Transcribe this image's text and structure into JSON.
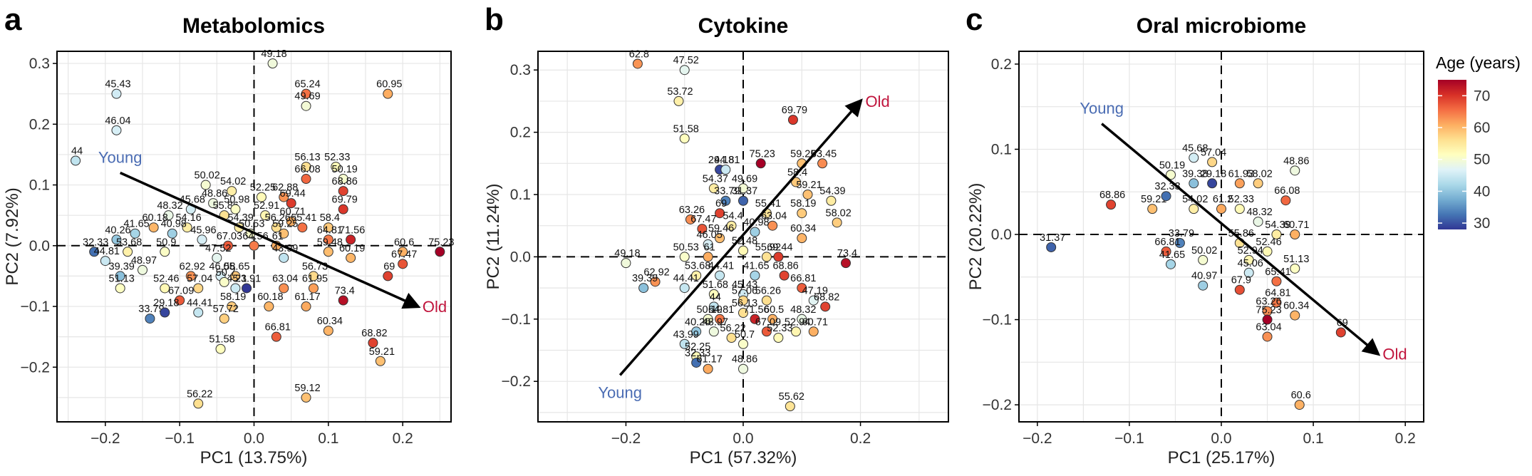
{
  "colors": {
    "young": "#4a6cb3",
    "old": "#c0143c",
    "grid": "#e6e6e6",
    "frame": "#000000",
    "scale": [
      "#313695",
      "#4575b4",
      "#74add1",
      "#abd9e9",
      "#e0f3f8",
      "#ffffbf",
      "#fee090",
      "#fdae61",
      "#f46d43",
      "#d73027",
      "#a50026"
    ]
  },
  "legend": {
    "title": "Age (years)",
    "ticks": [
      30,
      40,
      50,
      60,
      70
    ],
    "range": [
      28,
      75
    ]
  },
  "chart_data": [
    {
      "type": "scatter",
      "panel": "a",
      "title": "Metabolomics",
      "xlabel": "PC1 (13.75%)",
      "ylabel": "PC2 (7.92%)",
      "xlim": [
        -0.265,
        0.265
      ],
      "ylim": [
        -0.29,
        0.32
      ],
      "xticks": [
        -0.2,
        -0.1,
        0.0,
        0.1,
        0.2
      ],
      "xtick_labels": [
        "−0.2",
        "−0.1",
        "0.0",
        "0.1",
        "0.2"
      ],
      "yticks": [
        -0.2,
        -0.1,
        0.0,
        0.1,
        0.2,
        0.3
      ],
      "ytick_labels": [
        "−0.2",
        "−0.1",
        "0.0",
        "0.1",
        "0.2",
        "0.3"
      ],
      "grid": true,
      "arrow": {
        "from": [
          -0.18,
          0.12
        ],
        "to": [
          0.22,
          -0.1
        ],
        "young_label": "Young",
        "old_label": "Old"
      },
      "points": [
        {
          "x": 0.025,
          "y": 0.3,
          "age": 49.18
        },
        {
          "x": 0.07,
          "y": 0.25,
          "age": 65.24
        },
        {
          "x": 0.07,
          "y": 0.23,
          "age": 49.69
        },
        {
          "x": 0.18,
          "y": 0.25,
          "age": 60.95
        },
        {
          "x": -0.185,
          "y": 0.25,
          "age": 45.43
        },
        {
          "x": -0.185,
          "y": 0.19,
          "age": 46.04
        },
        {
          "x": -0.24,
          "y": 0.14,
          "age": 44
        },
        {
          "x": -0.065,
          "y": 0.1,
          "age": 50.02
        },
        {
          "x": -0.03,
          "y": 0.09,
          "age": 54.02
        },
        {
          "x": 0.01,
          "y": 0.08,
          "age": 52.25
        },
        {
          "x": 0.07,
          "y": 0.13,
          "age": 56.13
        },
        {
          "x": 0.11,
          "y": 0.13,
          "age": 52.33
        },
        {
          "x": 0.07,
          "y": 0.11,
          "age": 66.08
        },
        {
          "x": 0.12,
          "y": 0.11,
          "age": 50.19
        },
        {
          "x": 0.04,
          "y": 0.08,
          "age": 62.88
        },
        {
          "x": 0.05,
          "y": 0.07,
          "age": 69.44
        },
        {
          "x": 0.12,
          "y": 0.09,
          "age": 68.86
        },
        {
          "x": -0.055,
          "y": 0.07,
          "age": 48.86
        },
        {
          "x": -0.085,
          "y": 0.06,
          "age": 45.68
        },
        {
          "x": -0.115,
          "y": 0.05,
          "age": 48.32
        },
        {
          "x": -0.04,
          "y": 0.05,
          "age": 55.86
        },
        {
          "x": -0.025,
          "y": 0.06,
          "age": 50.98
        },
        {
          "x": 0.015,
          "y": 0.05,
          "age": 52.91
        },
        {
          "x": 0.05,
          "y": 0.04,
          "age": 60.71
        },
        {
          "x": 0.12,
          "y": 0.06,
          "age": 69.79
        },
        {
          "x": -0.135,
          "y": 0.03,
          "age": 60.18
        },
        {
          "x": -0.09,
          "y": 0.03,
          "age": 54.16
        },
        {
          "x": -0.16,
          "y": 0.02,
          "age": 41.65
        },
        {
          "x": -0.11,
          "y": 0.02,
          "age": 40.98
        },
        {
          "x": -0.185,
          "y": 0.01,
          "age": 40.26
        },
        {
          "x": -0.02,
          "y": 0.03,
          "age": 54.39
        },
        {
          "x": -0.005,
          "y": 0.02,
          "age": 50.53
        },
        {
          "x": 0.03,
          "y": 0.03,
          "age": 56.26
        },
        {
          "x": 0.065,
          "y": 0.03,
          "age": 65.41
        },
        {
          "x": 0.1,
          "y": 0.03,
          "age": 58.4
        },
        {
          "x": 0.04,
          "y": 0.02,
          "age": 59.25
        },
        {
          "x": 0.1,
          "y": 0.01,
          "age": 64.81
        },
        {
          "x": 0.13,
          "y": 0.01,
          "age": 71.56
        },
        {
          "x": 0.25,
          "y": -0.01,
          "age": 75.23
        },
        {
          "x": 0.2,
          "y": -0.01,
          "age": 60.6
        },
        {
          "x": -0.215,
          "y": -0.01,
          "age": 32.33
        },
        {
          "x": -0.17,
          "y": -0.01,
          "age": 53.68
        },
        {
          "x": -0.12,
          "y": -0.01,
          "age": 50.9
        },
        {
          "x": -0.07,
          "y": 0.01,
          "age": 45.96
        },
        {
          "x": -0.035,
          "y": 0.0,
          "age": 67.03
        },
        {
          "x": 0.0,
          "y": 0.0,
          "age": 64.56
        },
        {
          "x": 0.03,
          "y": 0.0,
          "age": 61
        },
        {
          "x": -0.05,
          "y": -0.02,
          "age": 47.52
        },
        {
          "x": -0.2,
          "y": -0.025,
          "age": 44.81
        },
        {
          "x": 0.04,
          "y": -0.02,
          "age": 43.99
        },
        {
          "x": 0.1,
          "y": -0.01,
          "age": 59.48
        },
        {
          "x": 0.13,
          "y": -0.02,
          "age": 60.19
        },
        {
          "x": 0.2,
          "y": -0.03,
          "age": 67.47
        },
        {
          "x": -0.15,
          "y": -0.04,
          "age": 48.97
        },
        {
          "x": -0.18,
          "y": -0.05,
          "age": 39.39
        },
        {
          "x": -0.085,
          "y": -0.05,
          "age": 62.92
        },
        {
          "x": -0.045,
          "y": -0.05,
          "age": 46.05
        },
        {
          "x": -0.025,
          "y": -0.05,
          "age": 58.65
        },
        {
          "x": 0.08,
          "y": -0.05,
          "age": 56.73
        },
        {
          "x": 0.18,
          "y": -0.05,
          "age": 69
        },
        {
          "x": -0.12,
          "y": -0.07,
          "age": 52.46
        },
        {
          "x": -0.18,
          "y": -0.07,
          "age": 51.13
        },
        {
          "x": -0.075,
          "y": -0.07,
          "age": 57.04
        },
        {
          "x": -0.025,
          "y": -0.07,
          "age": 45.1
        },
        {
          "x": -0.01,
          "y": -0.07,
          "age": 23.91
        },
        {
          "x": -0.04,
          "y": -0.06,
          "age": 50.7
        },
        {
          "x": 0.04,
          "y": -0.07,
          "age": 63.04
        },
        {
          "x": 0.08,
          "y": -0.07,
          "age": 61.95
        },
        {
          "x": -0.1,
          "y": -0.09,
          "age": 67.09
        },
        {
          "x": -0.03,
          "y": -0.1,
          "age": 58.19
        },
        {
          "x": 0.02,
          "y": -0.1,
          "age": 60.18
        },
        {
          "x": 0.07,
          "y": -0.1,
          "age": 61.17
        },
        {
          "x": 0.12,
          "y": -0.09,
          "age": 73.4
        },
        {
          "x": -0.14,
          "y": -0.12,
          "age": 33.79
        },
        {
          "x": -0.12,
          "y": -0.11,
          "age": 29.18
        },
        {
          "x": -0.075,
          "y": -0.11,
          "age": 44.41
        },
        {
          "x": -0.04,
          "y": -0.12,
          "age": 57.72
        },
        {
          "x": 0.1,
          "y": -0.14,
          "age": 60.34
        },
        {
          "x": 0.03,
          "y": -0.15,
          "age": 66.81
        },
        {
          "x": 0.16,
          "y": -0.16,
          "age": 68.82
        },
        {
          "x": 0.17,
          "y": -0.19,
          "age": 59.21
        },
        {
          "x": -0.045,
          "y": -0.17,
          "age": 51.58
        },
        {
          "x": 0.07,
          "y": -0.25,
          "age": 59.12
        },
        {
          "x": -0.075,
          "y": -0.26,
          "age": 56.22
        }
      ]
    },
    {
      "type": "scatter",
      "panel": "b",
      "title": "Cytokine",
      "xlabel": "PC1 (57.32%)",
      "ylabel": "PC2 (11.24%)",
      "xlim": [
        -0.35,
        0.35
      ],
      "ylim": [
        -0.265,
        0.33
      ],
      "xticks": [
        -0.2,
        0.0,
        0.2
      ],
      "xtick_labels": [
        "−0.2",
        "0.0",
        "0.2"
      ],
      "yticks": [
        -0.2,
        -0.1,
        0.0,
        0.1,
        0.2,
        0.3
      ],
      "ytick_labels": [
        "−0.2",
        "−0.1",
        "0.0",
        "0.1",
        "0.2",
        "0.3"
      ],
      "grid": true,
      "arrow": {
        "from": [
          -0.21,
          -0.19
        ],
        "to": [
          0.2,
          0.25
        ],
        "young_label": "Young",
        "old_label": "Old"
      },
      "points": [
        {
          "x": -0.18,
          "y": 0.31,
          "age": 62.8
        },
        {
          "x": -0.1,
          "y": 0.3,
          "age": 47.52
        },
        {
          "x": -0.11,
          "y": 0.25,
          "age": 53.72
        },
        {
          "x": -0.1,
          "y": 0.19,
          "age": 51.58
        },
        {
          "x": 0.085,
          "y": 0.22,
          "age": 69.79
        },
        {
          "x": -0.04,
          "y": 0.14,
          "age": 29.18
        },
        {
          "x": 0.03,
          "y": 0.15,
          "age": 75.23
        },
        {
          "x": 0.1,
          "y": 0.15,
          "age": 59.25
        },
        {
          "x": -0.03,
          "y": 0.14,
          "age": 44.81
        },
        {
          "x": 0.135,
          "y": 0.15,
          "age": 63.45
        },
        {
          "x": 0.09,
          "y": 0.12,
          "age": 58.4
        },
        {
          "x": -0.05,
          "y": 0.11,
          "age": 54.37
        },
        {
          "x": 0.0,
          "y": 0.11,
          "age": 49.69
        },
        {
          "x": 0.11,
          "y": 0.1,
          "age": 59.21
        },
        {
          "x": 0.15,
          "y": 0.09,
          "age": 54.39
        },
        {
          "x": -0.03,
          "y": 0.09,
          "age": 33.79
        },
        {
          "x": 0.0,
          "y": 0.09,
          "age": 31.37
        },
        {
          "x": -0.04,
          "y": 0.07,
          "age": 69
        },
        {
          "x": 0.04,
          "y": 0.07,
          "age": 55.41
        },
        {
          "x": 0.1,
          "y": 0.07,
          "age": 58.19
        },
        {
          "x": 0.16,
          "y": 0.055,
          "age": 58.02
        },
        {
          "x": 0.05,
          "y": 0.05,
          "age": 63.04
        },
        {
          "x": -0.09,
          "y": 0.06,
          "age": 63.26
        },
        {
          "x": -0.07,
          "y": 0.045,
          "age": 67.47
        },
        {
          "x": -0.02,
          "y": 0.05,
          "age": 54.4
        },
        {
          "x": 0.02,
          "y": 0.04,
          "age": 40.98
        },
        {
          "x": 0.1,
          "y": 0.03,
          "age": 60.34
        },
        {
          "x": -0.04,
          "y": 0.03,
          "age": 59.46
        },
        {
          "x": -0.06,
          "y": 0.02,
          "age": 46.05
        },
        {
          "x": -0.1,
          "y": 0.0,
          "age": 50.53
        },
        {
          "x": -0.06,
          "y": 0.0,
          "age": 61
        },
        {
          "x": 0.0,
          "y": 0.01,
          "age": 52.48
        },
        {
          "x": 0.06,
          "y": 0.0,
          "age": 69.44
        },
        {
          "x": 0.04,
          "y": 0.0,
          "age": 55.92
        },
        {
          "x": 0.175,
          "y": -0.01,
          "age": 73.4
        },
        {
          "x": -0.2,
          "y": -0.01,
          "age": 49.18
        },
        {
          "x": -0.08,
          "y": -0.03,
          "age": 53.68
        },
        {
          "x": -0.04,
          "y": -0.03,
          "age": 44.41
        },
        {
          "x": 0.02,
          "y": -0.03,
          "age": 41.65
        },
        {
          "x": 0.07,
          "y": -0.03,
          "age": 68.86
        },
        {
          "x": -0.15,
          "y": -0.04,
          "age": 62.92
        },
        {
          "x": -0.17,
          "y": -0.05,
          "age": 39.39
        },
        {
          "x": -0.1,
          "y": -0.05,
          "age": 44.41
        },
        {
          "x": 0.0,
          "y": -0.06,
          "age": 45.43
        },
        {
          "x": 0.1,
          "y": -0.05,
          "age": 66.81
        },
        {
          "x": -0.05,
          "y": -0.06,
          "age": 51.68
        },
        {
          "x": 0.0,
          "y": -0.07,
          "age": 57.06
        },
        {
          "x": 0.04,
          "y": -0.07,
          "age": 56.26
        },
        {
          "x": 0.12,
          "y": -0.07,
          "age": 47.19
        },
        {
          "x": -0.05,
          "y": -0.08,
          "age": 44
        },
        {
          "x": 0.0,
          "y": -0.09,
          "age": 56.13
        },
        {
          "x": 0.14,
          "y": -0.08,
          "age": 68.82
        },
        {
          "x": -0.04,
          "y": -0.1,
          "age": 64.81
        },
        {
          "x": 0.02,
          "y": -0.1,
          "age": 71.56
        },
        {
          "x": 0.05,
          "y": -0.1,
          "age": 60.5
        },
        {
          "x": 0.1,
          "y": -0.1,
          "age": 48.32
        },
        {
          "x": -0.06,
          "y": -0.1,
          "age": 50.19
        },
        {
          "x": -0.08,
          "y": -0.12,
          "age": 40.26
        },
        {
          "x": -0.05,
          "y": -0.12,
          "age": 48.97
        },
        {
          "x": -0.02,
          "y": -0.13,
          "age": 56.22
        },
        {
          "x": 0.04,
          "y": -0.12,
          "age": 67.09
        },
        {
          "x": 0.09,
          "y": -0.12,
          "age": 52.94
        },
        {
          "x": 0.12,
          "y": -0.12,
          "age": 60.71
        },
        {
          "x": -0.1,
          "y": -0.14,
          "age": 43.99
        },
        {
          "x": 0.0,
          "y": -0.14,
          "age": 50.7
        },
        {
          "x": 0.06,
          "y": -0.13,
          "age": 52.33
        },
        {
          "x": -0.08,
          "y": -0.16,
          "age": 52.25
        },
        {
          "x": -0.08,
          "y": -0.17,
          "age": 32.33
        },
        {
          "x": -0.06,
          "y": -0.18,
          "age": 61.17
        },
        {
          "x": 0.0,
          "y": -0.18,
          "age": 48.86
        },
        {
          "x": 0.08,
          "y": -0.24,
          "age": 55.62
        }
      ]
    },
    {
      "type": "scatter",
      "panel": "c",
      "title": "Oral microbiome",
      "xlabel": "PC1 (25.17%)",
      "ylabel": "PC2 (20.22%)",
      "xlim": [
        -0.22,
        0.22
      ],
      "ylim": [
        -0.22,
        0.215
      ],
      "xticks": [
        -0.2,
        -0.1,
        0.0,
        0.1,
        0.2
      ],
      "xtick_labels": [
        "−0.2",
        "−0.1",
        "0.0",
        "0.1",
        "0.2"
      ],
      "yticks": [
        -0.2,
        -0.1,
        0.0,
        0.1,
        0.2
      ],
      "ytick_labels": [
        "−0.2",
        "−0.1",
        "0.0",
        "0.1",
        "0.2"
      ],
      "grid": true,
      "arrow": {
        "from": [
          -0.13,
          0.13
        ],
        "to": [
          0.17,
          -0.14
        ],
        "young_label": "Young",
        "old_label": "Old"
      },
      "points": [
        {
          "x": -0.185,
          "y": -0.015,
          "age": 31.37
        },
        {
          "x": -0.12,
          "y": 0.035,
          "age": 68.86
        },
        {
          "x": -0.075,
          "y": 0.03,
          "age": 59.21
        },
        {
          "x": -0.03,
          "y": 0.09,
          "age": 45.68
        },
        {
          "x": -0.01,
          "y": 0.085,
          "age": 57.04
        },
        {
          "x": -0.055,
          "y": 0.07,
          "age": 50.19
        },
        {
          "x": -0.06,
          "y": 0.045,
          "age": 32.33
        },
        {
          "x": -0.03,
          "y": 0.06,
          "age": 39.38
        },
        {
          "x": -0.01,
          "y": 0.06,
          "age": 29.18
        },
        {
          "x": 0.02,
          "y": 0.06,
          "age": 61.93
        },
        {
          "x": 0.04,
          "y": 0.06,
          "age": 58.02
        },
        {
          "x": 0.08,
          "y": 0.075,
          "age": 48.86
        },
        {
          "x": -0.03,
          "y": 0.03,
          "age": 54.02
        },
        {
          "x": 0.0,
          "y": 0.03,
          "age": 61.2
        },
        {
          "x": 0.07,
          "y": 0.04,
          "age": 66.08
        },
        {
          "x": 0.02,
          "y": 0.03,
          "age": 52.33
        },
        {
          "x": 0.04,
          "y": 0.015,
          "age": 48.32
        },
        {
          "x": 0.06,
          "y": 0.0,
          "age": 54.39
        },
        {
          "x": 0.08,
          "y": 0.0,
          "age": 60.71
        },
        {
          "x": -0.045,
          "y": -0.01,
          "age": 33.79
        },
        {
          "x": 0.02,
          "y": -0.01,
          "age": 55.86
        },
        {
          "x": 0.05,
          "y": -0.02,
          "age": 52.46
        },
        {
          "x": -0.06,
          "y": -0.02,
          "age": 66.81
        },
        {
          "x": -0.02,
          "y": -0.03,
          "age": 50.02
        },
        {
          "x": 0.03,
          "y": -0.03,
          "age": 52.94
        },
        {
          "x": 0.08,
          "y": -0.04,
          "age": 51.13
        },
        {
          "x": -0.055,
          "y": -0.035,
          "age": 41.65
        },
        {
          "x": 0.03,
          "y": -0.045,
          "age": 45.06
        },
        {
          "x": 0.06,
          "y": -0.055,
          "age": 65.41
        },
        {
          "x": -0.02,
          "y": -0.06,
          "age": 40.97
        },
        {
          "x": 0.02,
          "y": -0.065,
          "age": 67.9
        },
        {
          "x": 0.06,
          "y": -0.08,
          "age": 64.81
        },
        {
          "x": 0.05,
          "y": -0.09,
          "age": 63.26
        },
        {
          "x": 0.08,
          "y": -0.095,
          "age": 60.34
        },
        {
          "x": 0.05,
          "y": -0.1,
          "age": 75.23
        },
        {
          "x": 0.13,
          "y": -0.115,
          "age": 69
        },
        {
          "x": 0.05,
          "y": -0.12,
          "age": 63.04
        },
        {
          "x": 0.085,
          "y": -0.2,
          "age": 60.6
        }
      ]
    }
  ]
}
